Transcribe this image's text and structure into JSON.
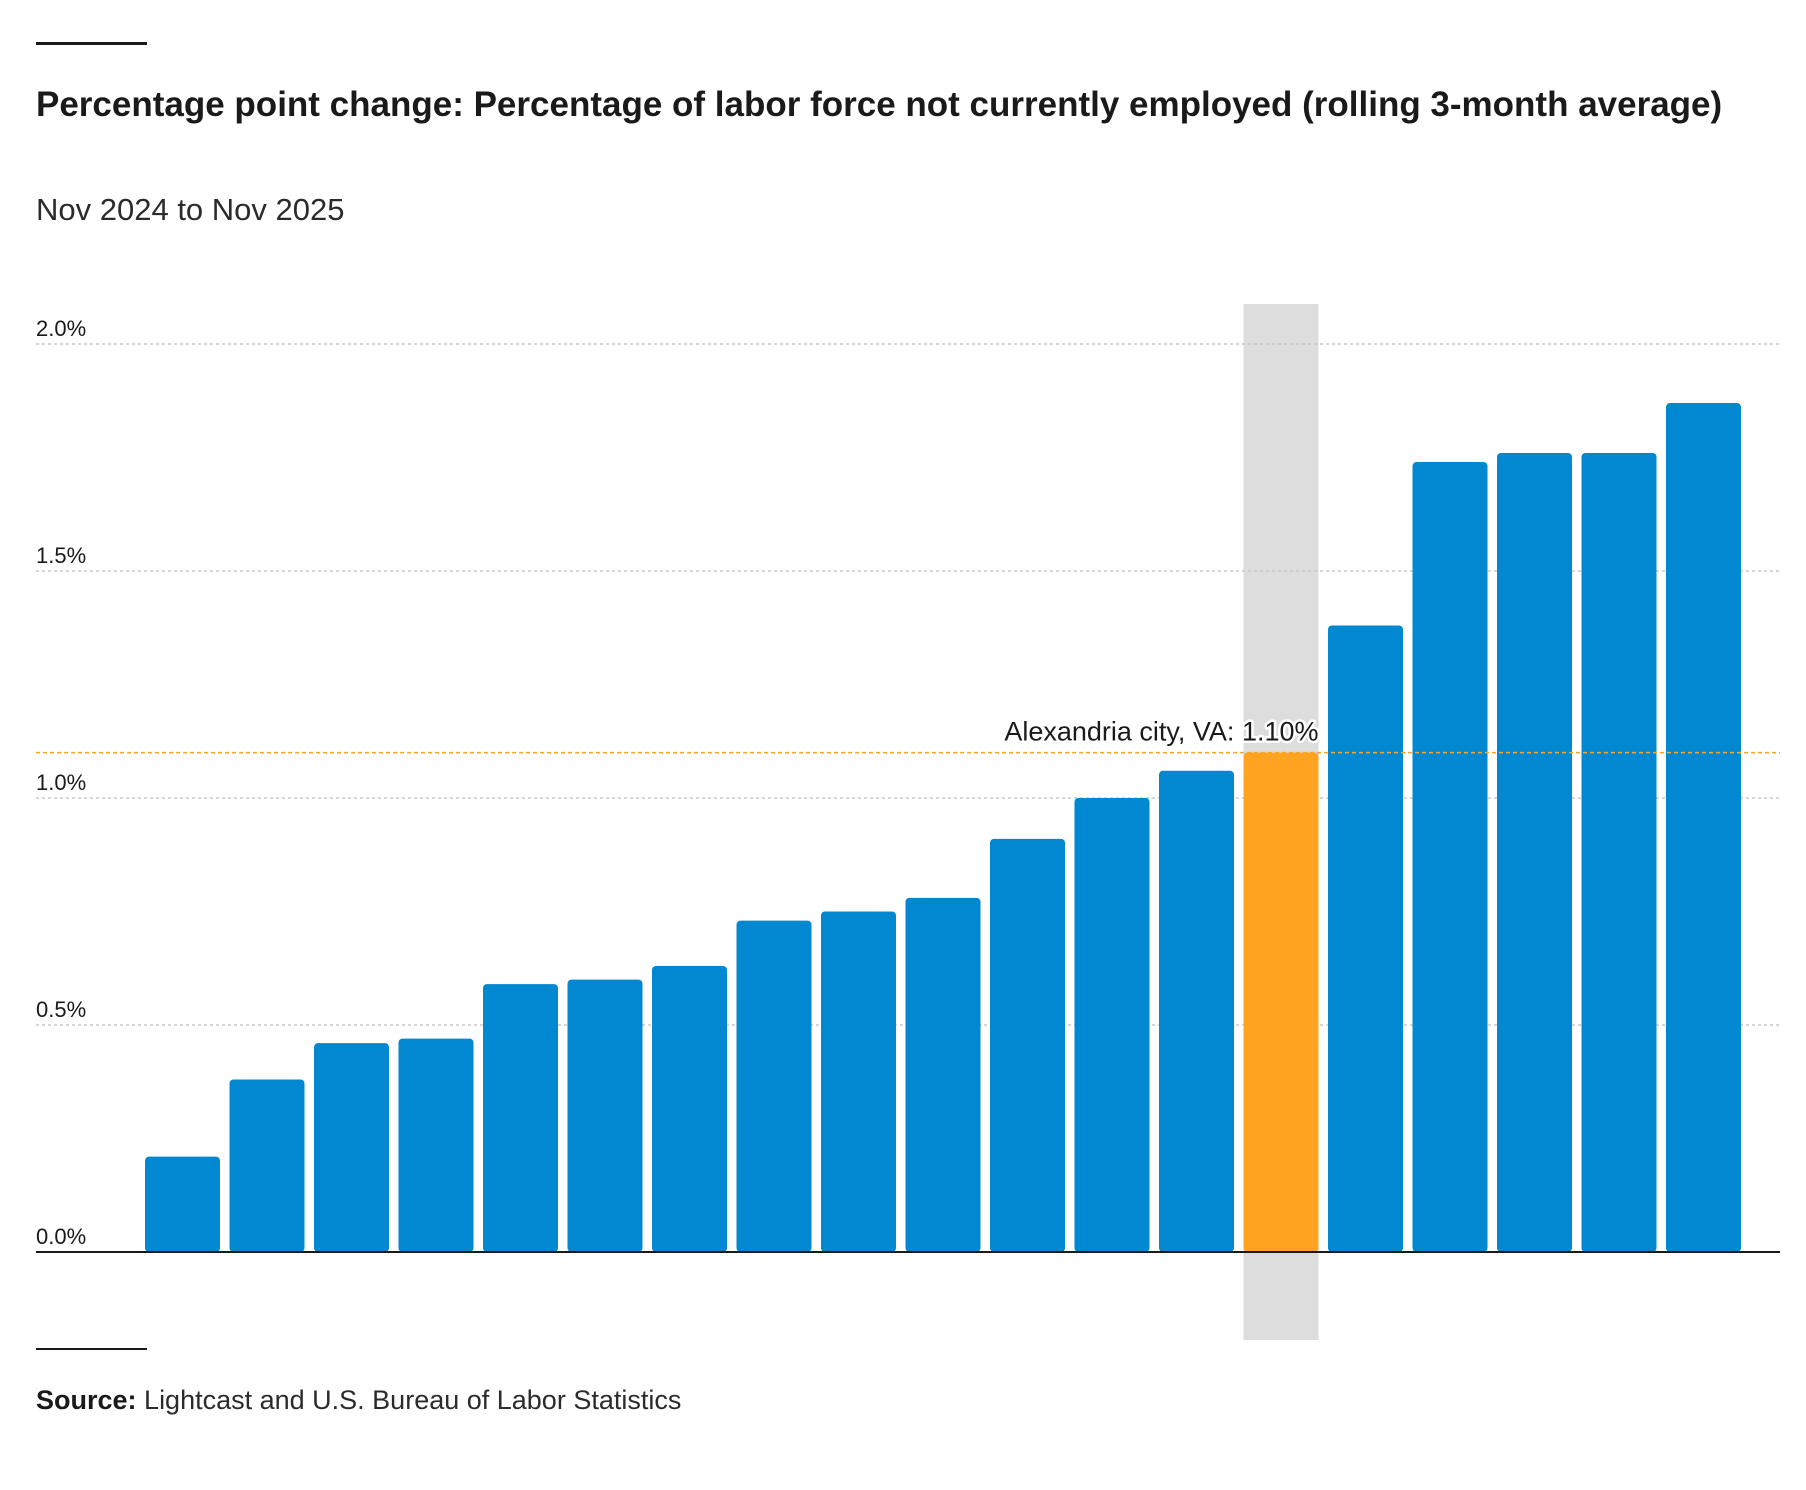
{
  "title": "Percentage point change: Percentage of labor force not currently employed (rolling 3-month average)",
  "subtitle": "Nov 2024 to Nov 2025",
  "source": {
    "label": "Source:",
    "text": "Lightcast and U.S. Bureau of Labor Statistics"
  },
  "colors": {
    "bar": "#0288d1",
    "highlight": "#ffa320",
    "highlight_band": "#dddddd",
    "grid": "#c8c8c8",
    "axis": "#1a1a1a"
  },
  "chart_data": {
    "type": "bar",
    "title": "Percentage point change: Percentage of labor force not currently employed (rolling 3-month average)",
    "subtitle": "Nov 2024 to Nov 2025",
    "values": [
      0.21,
      0.38,
      0.46,
      0.47,
      0.59,
      0.6,
      0.63,
      0.73,
      0.75,
      0.78,
      0.91,
      1.0,
      1.06,
      1.1,
      1.38,
      1.74,
      1.76,
      1.76,
      1.87
    ],
    "highlight_index": 13,
    "highlight_label": "Alexandria city, VA: 1.10%",
    "ylim": [
      0,
      2.0
    ],
    "yticks": [
      {
        "value": 0.0,
        "label": "0.0%"
      },
      {
        "value": 0.5,
        "label": "0.5%"
      },
      {
        "value": 1.0,
        "label": "1.0%"
      },
      {
        "value": 1.5,
        "label": "1.5%"
      },
      {
        "value": 2.0,
        "label": "2.0%"
      }
    ],
    "grid": true,
    "xlabel": "",
    "ylabel": ""
  }
}
